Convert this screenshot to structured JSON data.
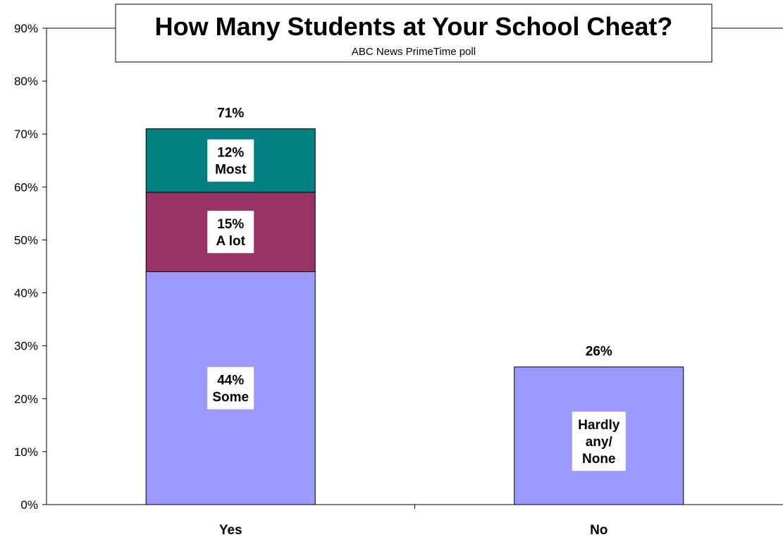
{
  "chart_data": {
    "type": "bar",
    "stacked": true,
    "title": "How Many Students at Your School Cheat?",
    "subtitle": "ABC News PrimeTime poll",
    "categories": [
      "Yes",
      "No"
    ],
    "ylim": [
      0,
      90
    ],
    "yticks": [
      "0%",
      "10%",
      "20%",
      "30%",
      "40%",
      "50%",
      "60%",
      "70%",
      "80%",
      "90%"
    ],
    "grid": false,
    "legend": "none",
    "totals": [
      "71%",
      "26%"
    ],
    "bars": [
      {
        "category": "Yes",
        "segments": [
          {
            "value": 44,
            "label_lines": [
              "44%",
              "Some"
            ],
            "color": "#9999ff"
          },
          {
            "value": 15,
            "label_lines": [
              "15%",
              "A lot"
            ],
            "color": "#993366"
          },
          {
            "value": 12,
            "label_lines": [
              "12%",
              "Most"
            ],
            "color": "#008080"
          }
        ]
      },
      {
        "category": "No",
        "segments": [
          {
            "value": 26,
            "label_lines": [
              "Hardly",
              "any/",
              "None"
            ],
            "color": "#9999ff"
          }
        ]
      }
    ]
  }
}
